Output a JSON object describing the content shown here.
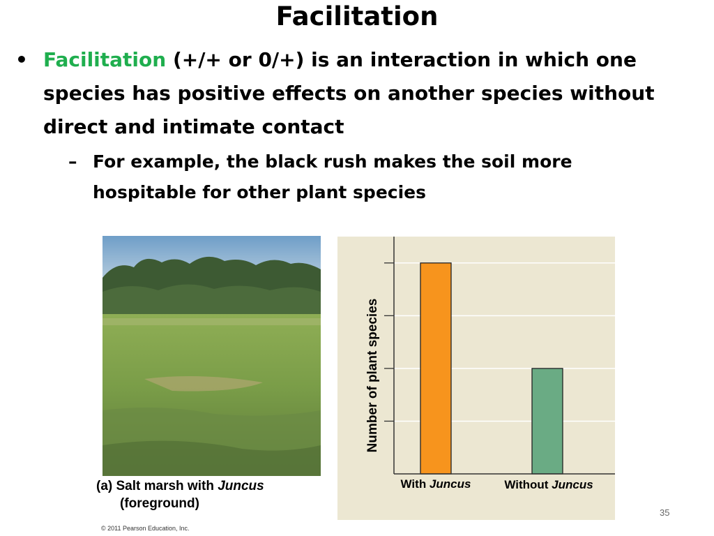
{
  "slide": {
    "title": "Facilitation",
    "bullet": {
      "marker": "•",
      "term": "Facilitation",
      "text": " (+/+ or 0/+) is an interaction in which one species has positive effects on another species without direct and intimate contact"
    },
    "sub_bullet": {
      "marker": "–",
      "text": "For example, the black rush makes the soil more hospitable for other plant species"
    },
    "photo_caption_line1": "(a) Salt marsh with ",
    "photo_caption_italic": "Juncus",
    "photo_caption_line2": "(foreground)",
    "copyright": "© 2011 Pearson Education, Inc.",
    "page_number": "35"
  },
  "chart_data": {
    "type": "bar",
    "categories": [
      "With Juncus",
      "Without Juncus"
    ],
    "category_prefixes": [
      "With ",
      "Without "
    ],
    "category_italics": [
      "Juncus",
      "Juncus"
    ],
    "values": [
      4,
      2
    ],
    "ylim": [
      0,
      4.5
    ],
    "ylabel": "Number of plant species",
    "xlabel": "",
    "title": "",
    "gridlines": [
      1,
      2,
      3,
      4
    ],
    "tick_labels_shown": false,
    "colors": [
      "#f7941d",
      "#6aab84"
    ],
    "background": "#ece7d2"
  }
}
